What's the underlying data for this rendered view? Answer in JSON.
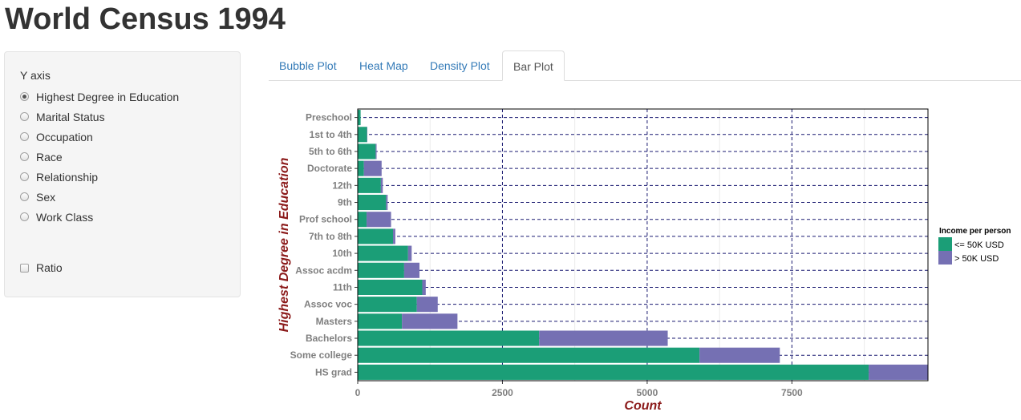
{
  "page": {
    "title": "World Census 1994"
  },
  "sidebar": {
    "yaxis_label": "Y axis",
    "options": [
      {
        "label": "Highest Degree in Education",
        "checked": true
      },
      {
        "label": "Marital Status",
        "checked": false
      },
      {
        "label": "Occupation",
        "checked": false
      },
      {
        "label": "Race",
        "checked": false
      },
      {
        "label": "Relationship",
        "checked": false
      },
      {
        "label": "Sex",
        "checked": false
      },
      {
        "label": "Work Class",
        "checked": false
      }
    ],
    "ratio_label": "Ratio",
    "ratio_checked": false
  },
  "tabs": [
    {
      "label": "Bubble Plot",
      "active": false
    },
    {
      "label": "Heat Map",
      "active": false
    },
    {
      "label": "Density Plot",
      "active": false
    },
    {
      "label": "Bar Plot",
      "active": true
    }
  ],
  "chart_data": {
    "type": "bar",
    "orientation": "horizontal",
    "stacked": true,
    "categories": [
      "Preschool",
      "1st to 4th",
      "5th to 6th",
      "Doctorate",
      "12th",
      "9th",
      "Prof school",
      "7th to 8th",
      "10th",
      "Assoc acdm",
      "11th",
      "Assoc voc",
      "Masters",
      "Bachelors",
      "Some college",
      "HS grad"
    ],
    "series": [
      {
        "name": "<= 50K USD",
        "color": "#1b9e77",
        "values": [
          50,
          160,
          310,
          107,
          400,
          490,
          153,
          610,
          870,
          802,
          1115,
          1021,
          764,
          3134,
          5904,
          8826
        ]
      },
      {
        "name": "> 50K USD",
        "color": "#7570b3",
        "values": [
          0,
          6,
          16,
          306,
          33,
          27,
          423,
          40,
          62,
          265,
          60,
          361,
          959,
          2221,
          1387,
          1675
        ]
      }
    ],
    "xlabel": "Count",
    "ylabel": "Highest Degree in Education",
    "xlim": [
      0,
      9850
    ],
    "xticks": [
      0,
      2500,
      5000,
      7500
    ],
    "legend": {
      "title": "Income per person",
      "position": "right"
    },
    "grid": true,
    "gridline_color": "#191970"
  }
}
